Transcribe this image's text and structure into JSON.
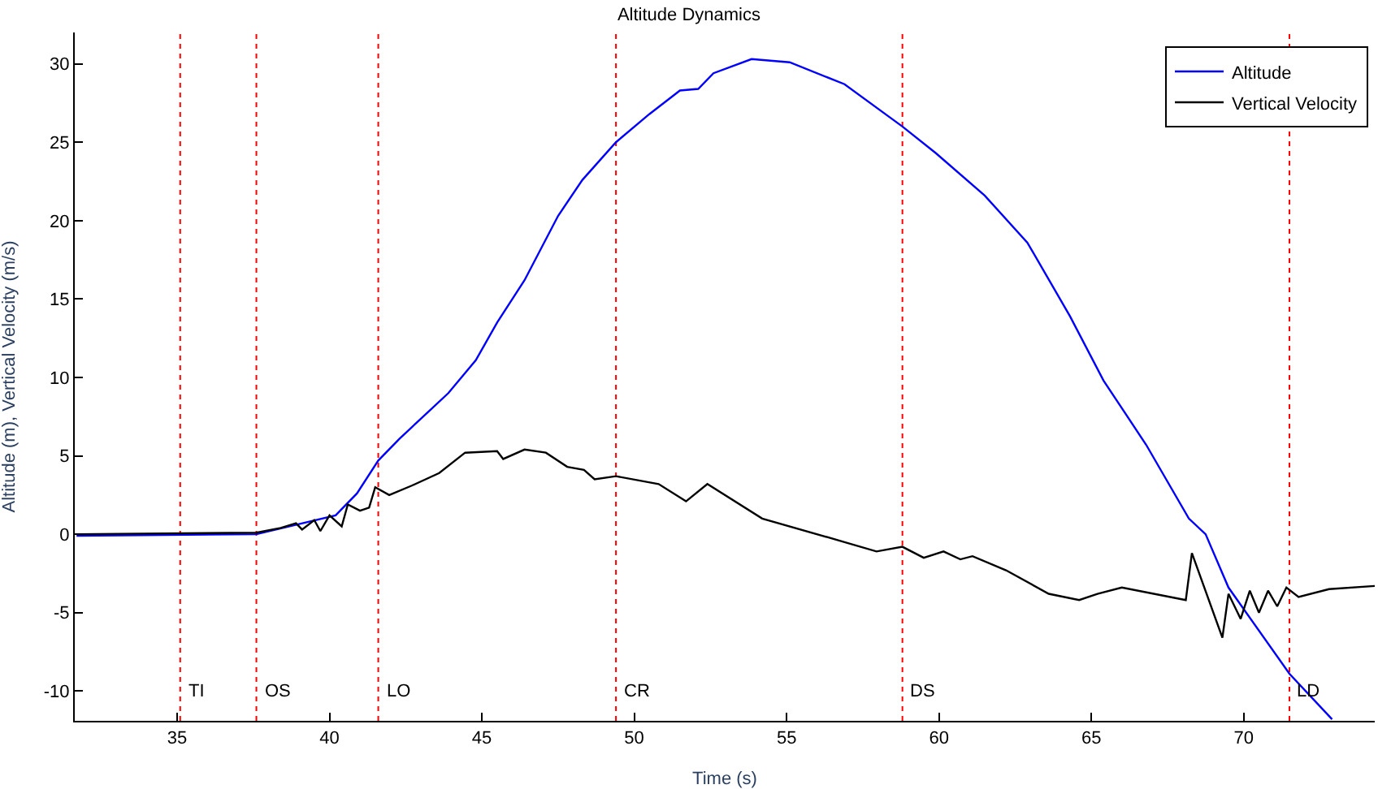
{
  "chart_data": {
    "type": "line",
    "title": "Altitude Dynamics",
    "xlabel": "Time (s)",
    "ylabel": "Altitude (m), Vertical Velocity (m/s)",
    "xlim": [
      31.64,
      74.3
    ],
    "ylim": [
      -11.9,
      32
    ],
    "xticks": [
      35,
      40,
      45,
      50,
      55,
      60,
      65,
      70
    ],
    "yticks": [
      -10,
      -5,
      0,
      5,
      10,
      15,
      20,
      25,
      30
    ],
    "grid": false,
    "legend": "top right",
    "marker": "none",
    "line_style": "solid",
    "series": [
      {
        "name": "Altitude",
        "color": "#0000ff",
        "x": [
          31.7,
          37.6,
          40.2,
          40.9,
          41.6,
          42.3,
          43.9,
          44.8,
          45.5,
          46.4,
          47.5,
          48.3,
          49.4,
          50.5,
          51.5,
          52.1,
          52.6,
          53.85,
          55.1,
          56.9,
          58.8,
          59.9,
          61.5,
          62.9,
          64.3,
          65.4,
          66.8,
          68.2,
          68.75,
          69.5,
          71.5,
          72.9
        ],
        "values": [
          -0.1,
          0,
          1.2,
          2.6,
          4.7,
          6.1,
          9.0,
          11.1,
          13.5,
          16.2,
          20.3,
          22.6,
          25.0,
          26.8,
          28.3,
          28.4,
          29.4,
          30.3,
          30.1,
          28.7,
          26.0,
          24.3,
          21.6,
          18.6,
          13.9,
          9.8,
          5.7,
          1.0,
          0,
          -3.4,
          -8.9,
          -11.8
        ]
      },
      {
        "name": "Vertical Velocity",
        "color": "#000000",
        "x": [
          31.7,
          37.6,
          38.4,
          38.9,
          39.1,
          39.5,
          39.7,
          40.0,
          40.4,
          40.6,
          41.0,
          41.3,
          41.5,
          41.96,
          42.7,
          43.6,
          44.45,
          45.5,
          45.7,
          46.4,
          47.1,
          47.8,
          48.35,
          48.7,
          49.4,
          50.8,
          51.7,
          52.4,
          54.2,
          56.9,
          57.95,
          58.8,
          59.5,
          60.15,
          60.7,
          61.1,
          62.2,
          63.6,
          64.6,
          65.2,
          66.0,
          68.1,
          68.3,
          69.3,
          69.5,
          69.9,
          70.2,
          70.5,
          70.8,
          71.1,
          71.4,
          71.8,
          72.8,
          74.3
        ],
        "values": [
          0,
          0.1,
          0.4,
          0.7,
          0.3,
          0.9,
          0.2,
          1.2,
          0.5,
          1.9,
          1.5,
          1.7,
          3.0,
          2.5,
          3.1,
          3.9,
          5.2,
          5.3,
          4.8,
          5.4,
          5.2,
          4.3,
          4.1,
          3.5,
          3.7,
          3.2,
          2.1,
          3.2,
          1.0,
          -0.5,
          -1.1,
          -0.8,
          -1.5,
          -1.1,
          -1.6,
          -1.4,
          -2.3,
          -3.8,
          -4.2,
          -3.8,
          -3.4,
          -4.2,
          -1.2,
          -6.6,
          -3.8,
          -5.4,
          -3.6,
          -5.0,
          -3.6,
          -4.6,
          -3.4,
          -4.0,
          -3.5,
          -3.3
        ]
      }
    ],
    "ref_lines": [
      {
        "axis": "x",
        "value": 35.1,
        "label": "TI",
        "color": "#ff0000",
        "line_style": "dotted"
      },
      {
        "axis": "x",
        "value": 37.6,
        "label": "OS",
        "color": "#ff0000",
        "line_style": "dotted"
      },
      {
        "axis": "x",
        "value": 41.6,
        "label": "LO",
        "color": "#ff0000",
        "line_style": "dotted"
      },
      {
        "axis": "x",
        "value": 49.4,
        "label": "CR",
        "color": "#ff0000",
        "line_style": "dotted"
      },
      {
        "axis": "x",
        "value": 58.8,
        "label": "DS",
        "color": "#ff0000",
        "line_style": "dotted"
      },
      {
        "axis": "x",
        "value": 71.5,
        "label": "LD",
        "color": "#ff0000",
        "line_style": "dotted"
      }
    ]
  }
}
